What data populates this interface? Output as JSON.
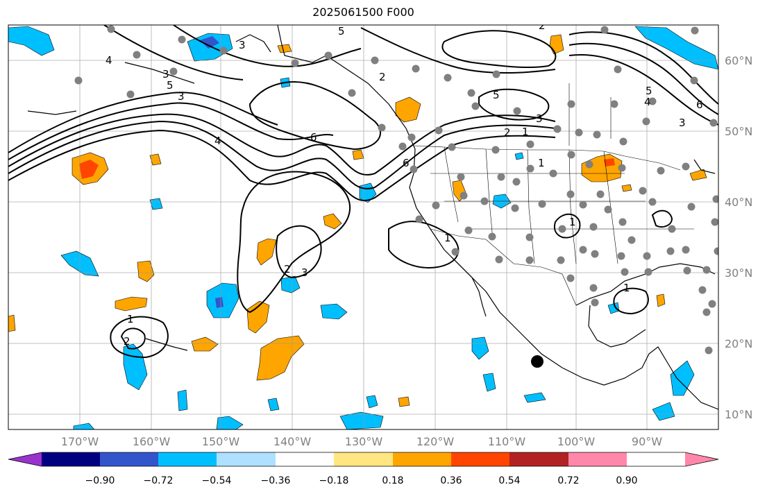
{
  "title": "2025061500 F000",
  "longitude_labels": [
    "170°W",
    "160°W",
    "150°W",
    "140°W",
    "130°W",
    "120°W",
    "110°W",
    "100°W",
    "90°W"
  ],
  "latitude_labels": [
    "60°N",
    "50°N",
    "40°N",
    "30°N",
    "20°N",
    "10°N"
  ],
  "colorbar": {
    "tick_labels": [
      "−0.90",
      "−0.72",
      "−0.54",
      "−0.36",
      "−0.18",
      "0.18",
      "0.36",
      "0.54",
      "0.72",
      "0.90"
    ],
    "colors": [
      "#9933cc",
      "#000080",
      "#3355cc",
      "#00bfff",
      "#aee0ff",
      "#ffffff",
      "#ffe680",
      "#ffa500",
      "#ff4500",
      "#b22222",
      "#ff88aa"
    ]
  },
  "contour_labels": [
    "5",
    "3",
    "2",
    "5",
    "2",
    "3",
    "4",
    "6",
    "3",
    "2",
    "3",
    "2",
    "1",
    "1",
    "1",
    "2",
    "6",
    "5",
    "4",
    "3",
    "6",
    "5",
    "4",
    "3",
    "1",
    "1",
    "1"
  ],
  "station_marker_color": "#808080"
}
